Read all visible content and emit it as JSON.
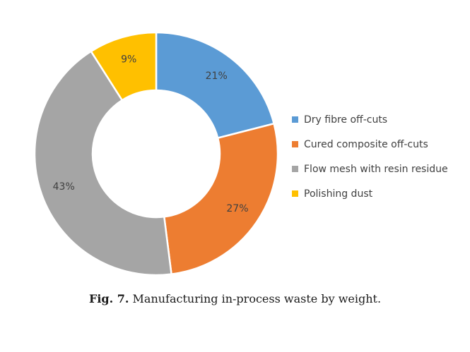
{
  "chart_data": {
    "type": "pie",
    "donut": true,
    "categories": [
      "Dry fibre off-cuts",
      "Cured composite off-cuts",
      "Flow mesh with resin residue",
      "Polishing dust"
    ],
    "values": [
      21,
      27,
      43,
      9
    ],
    "data_labels": [
      "21%",
      "27%",
      "43%",
      "9%"
    ],
    "colors": [
      "#5B9BD5",
      "#ED7D31",
      "#A5A5A5",
      "#FFC000"
    ],
    "legend_position": "right",
    "title": ""
  },
  "caption": {
    "number": "Fig. 7.",
    "text": "Manufacturing in-process waste by weight."
  }
}
